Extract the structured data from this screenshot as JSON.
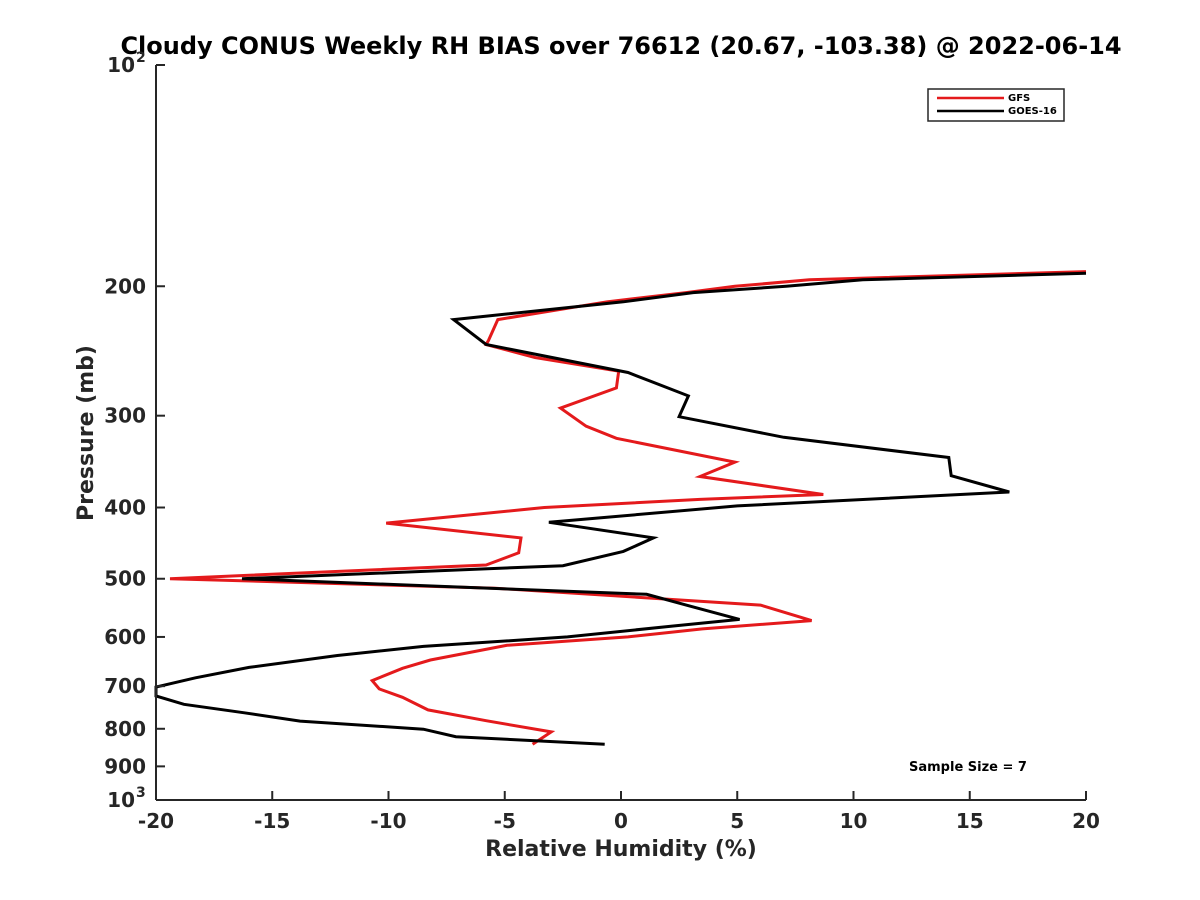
{
  "chart_data": {
    "type": "line",
    "title": "Cloudy CONUS Weekly RH BIAS over 76612 (20.67, -103.38) @ 2022-06-14",
    "xlabel": "Relative Humidity (%)",
    "ylabel": "Pressure (mb)",
    "xlim": [
      -20,
      20
    ],
    "ylim": [
      100,
      1000
    ],
    "yscale": "log",
    "y_reversed": true,
    "x_ticks": [
      {
        "value": -20,
        "label": "-20"
      },
      {
        "value": -15,
        "label": "-15"
      },
      {
        "value": -10,
        "label": "-10"
      },
      {
        "value": -5,
        "label": "-5"
      },
      {
        "value": 0,
        "label": "0"
      },
      {
        "value": 5,
        "label": "5"
      },
      {
        "value": 10,
        "label": "10"
      },
      {
        "value": 15,
        "label": "15"
      },
      {
        "value": 20,
        "label": "20"
      }
    ],
    "y_ticks": [
      {
        "value": 100,
        "label": "10",
        "exponent": "2"
      },
      {
        "value": 200,
        "label": "200"
      },
      {
        "value": 300,
        "label": "300"
      },
      {
        "value": 400,
        "label": "400"
      },
      {
        "value": 500,
        "label": "500"
      },
      {
        "value": 600,
        "label": "600"
      },
      {
        "value": 700,
        "label": "700"
      },
      {
        "value": 800,
        "label": "800"
      },
      {
        "value": 900,
        "label": "900"
      },
      {
        "value": 1000,
        "label": "10",
        "exponent": "3"
      }
    ],
    "legend_position": "top-right",
    "series": [
      {
        "name": "GFS",
        "color": "#e41a1c",
        "points": [
          {
            "x": 20,
            "p": 191
          },
          {
            "x": 8.1,
            "p": 196
          },
          {
            "x": 4.9,
            "p": 200
          },
          {
            "x": 2.8,
            "p": 204
          },
          {
            "x": -0.6,
            "p": 210
          },
          {
            "x": -5.3,
            "p": 222
          },
          {
            "x": -5.7,
            "p": 237
          },
          {
            "x": -5.8,
            "p": 240
          },
          {
            "x": -3.7,
            "p": 250
          },
          {
            "x": -0.1,
            "p": 261
          },
          {
            "x": -0.2,
            "p": 275
          },
          {
            "x": -2.6,
            "p": 293
          },
          {
            "x": -1.5,
            "p": 310
          },
          {
            "x": -0.2,
            "p": 322
          },
          {
            "x": 4.9,
            "p": 347
          },
          {
            "x": 3.4,
            "p": 363
          },
          {
            "x": 8.7,
            "p": 384
          },
          {
            "x": 3.4,
            "p": 390
          },
          {
            "x": -3.3,
            "p": 400
          },
          {
            "x": -10.1,
            "p": 420
          },
          {
            "x": -4.3,
            "p": 440
          },
          {
            "x": -4.4,
            "p": 461
          },
          {
            "x": -5.8,
            "p": 479
          },
          {
            "x": -19.4,
            "p": 500
          },
          {
            "x": -5.4,
            "p": 515
          },
          {
            "x": 6.0,
            "p": 543
          },
          {
            "x": 8.2,
            "p": 570
          },
          {
            "x": 3.5,
            "p": 585
          },
          {
            "x": 0.3,
            "p": 600
          },
          {
            "x": -4.9,
            "p": 616
          },
          {
            "x": -8.2,
            "p": 645
          },
          {
            "x": -9.4,
            "p": 662
          },
          {
            "x": -10.7,
            "p": 688
          },
          {
            "x": -10.4,
            "p": 706
          },
          {
            "x": -9.4,
            "p": 725
          },
          {
            "x": -8.3,
            "p": 754
          },
          {
            "x": -5.8,
            "p": 780
          },
          {
            "x": -3.0,
            "p": 808
          },
          {
            "x": -3.8,
            "p": 840
          }
        ]
      },
      {
        "name": "GOES-16",
        "color": "#000000",
        "points": [
          {
            "x": 20,
            "p": 192
          },
          {
            "x": 10.4,
            "p": 196
          },
          {
            "x": 7.1,
            "p": 200
          },
          {
            "x": 3.1,
            "p": 204
          },
          {
            "x": 0.1,
            "p": 210
          },
          {
            "x": -7.2,
            "p": 222
          },
          {
            "x": -5.8,
            "p": 240
          },
          {
            "x": 0.3,
            "p": 262
          },
          {
            "x": 2.9,
            "p": 282
          },
          {
            "x": 2.5,
            "p": 301
          },
          {
            "x": 7.0,
            "p": 321
          },
          {
            "x": 14.1,
            "p": 342
          },
          {
            "x": 14.2,
            "p": 362
          },
          {
            "x": 16.7,
            "p": 381
          },
          {
            "x": 5.0,
            "p": 398
          },
          {
            "x": -3.1,
            "p": 419
          },
          {
            "x": 1.4,
            "p": 440
          },
          {
            "x": 0.1,
            "p": 459
          },
          {
            "x": -2.5,
            "p": 480
          },
          {
            "x": -16.3,
            "p": 500
          },
          {
            "x": 1.1,
            "p": 525
          },
          {
            "x": 3.0,
            "p": 545
          },
          {
            "x": 5.1,
            "p": 568
          },
          {
            "x": 2.2,
            "p": 580
          },
          {
            "x": -2.3,
            "p": 600
          },
          {
            "x": -8.5,
            "p": 618
          },
          {
            "x": -12.2,
            "p": 636
          },
          {
            "x": -16.0,
            "p": 660
          },
          {
            "x": -18.3,
            "p": 682
          },
          {
            "x": -20,
            "p": 702
          },
          {
            "x": -20,
            "p": 722
          },
          {
            "x": -18.8,
            "p": 741
          },
          {
            "x": -16.2,
            "p": 761
          },
          {
            "x": -13.8,
            "p": 781
          },
          {
            "x": -8.5,
            "p": 801
          },
          {
            "x": -7.1,
            "p": 820
          },
          {
            "x": -0.7,
            "p": 840
          }
        ]
      }
    ],
    "annotations": [
      "Sample Size = 7"
    ]
  }
}
